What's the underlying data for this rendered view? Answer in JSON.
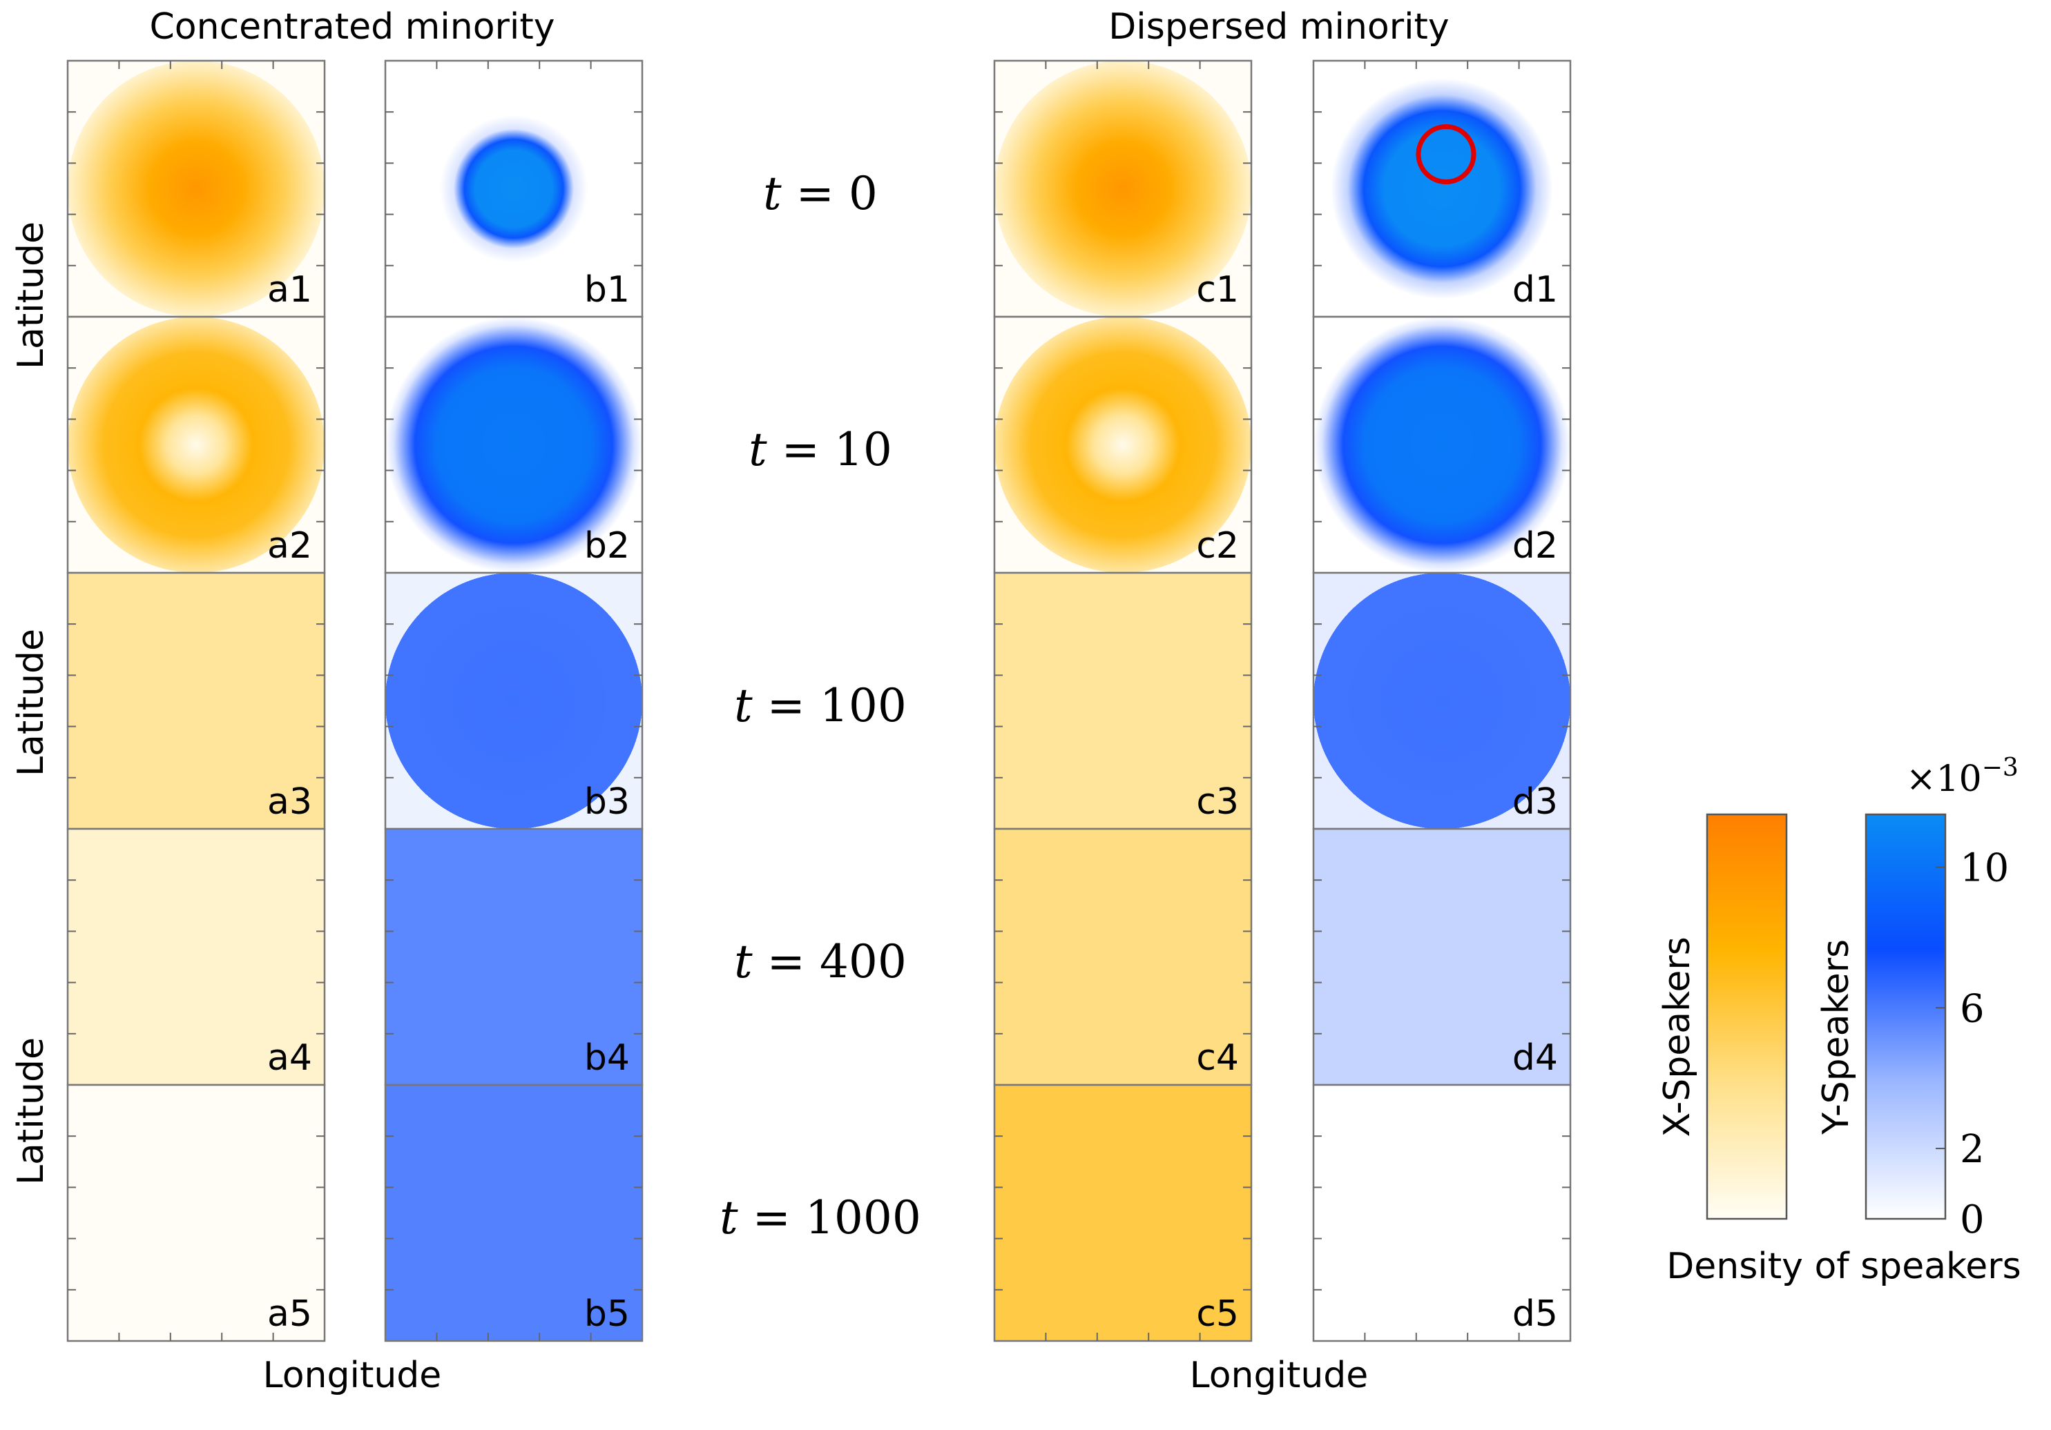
{
  "chart_data": {
    "type": "heatmap",
    "description_free": true,
    "group_titles": [
      "Concentrated minority",
      "Dispersed minority"
    ],
    "xlabel": "Longitude",
    "ylabel": "Latitude",
    "time_labels": [
      "t = 0",
      "t = 10",
      "t = 100",
      "t = 400",
      "t = 1000"
    ],
    "time_values": [
      0,
      10,
      100,
      400,
      1000
    ],
    "columns": [
      "a",
      "b",
      "c",
      "d"
    ],
    "column_species": [
      "X",
      "Y",
      "X",
      "Y"
    ],
    "panels": [
      {
        "id": "a1",
        "label": "a1",
        "species": "X",
        "t": 0,
        "pattern": "blob",
        "peak": 0.85,
        "base": 0.0,
        "radius": 0.4
      },
      {
        "id": "b1",
        "label": "b1",
        "species": "Y",
        "t": 0,
        "pattern": "disk",
        "peak": 1.0,
        "base": 0.0,
        "radius": 0.12
      },
      {
        "id": "c1",
        "label": "c1",
        "species": "X",
        "t": 0,
        "pattern": "blob",
        "peak": 0.85,
        "base": 0.0,
        "radius": 0.4
      },
      {
        "id": "d1",
        "label": "d1",
        "species": "Y",
        "t": 0,
        "pattern": "ringdisk",
        "peak": 1.0,
        "base": 0.0,
        "radius": 0.16,
        "marker": "red-ring"
      },
      {
        "id": "a2",
        "label": "a2",
        "species": "X",
        "t": 10,
        "pattern": "annulus",
        "peak": 0.65,
        "base": 0.0,
        "radius": 0.4
      },
      {
        "id": "b2",
        "label": "b2",
        "species": "Y",
        "t": 10,
        "pattern": "disk",
        "peak": 0.9,
        "base": 0.0,
        "radius": 0.24
      },
      {
        "id": "c2",
        "label": "c2",
        "species": "X",
        "t": 10,
        "pattern": "annulus",
        "peak": 0.65,
        "base": 0.0,
        "radius": 0.4
      },
      {
        "id": "d2",
        "label": "d2",
        "species": "Y",
        "t": 10,
        "pattern": "disk",
        "peak": 0.9,
        "base": 0.0,
        "radius": 0.24
      },
      {
        "id": "a3",
        "label": "a3",
        "species": "X",
        "t": 100,
        "pattern": "uniform",
        "peak": 0.28,
        "base": 0.28,
        "radius": 0.4
      },
      {
        "id": "b3",
        "label": "b3",
        "species": "Y",
        "t": 100,
        "pattern": "disk",
        "peak": 0.55,
        "base": 0.1,
        "radius": 0.4
      },
      {
        "id": "c3",
        "label": "c3",
        "species": "X",
        "t": 100,
        "pattern": "uniform",
        "peak": 0.28,
        "base": 0.28,
        "radius": 0.4
      },
      {
        "id": "d3",
        "label": "d3",
        "species": "Y",
        "t": 100,
        "pattern": "disk",
        "peak": 0.55,
        "base": 0.15,
        "radius": 0.4
      },
      {
        "id": "a4",
        "label": "a4",
        "species": "X",
        "t": 400,
        "pattern": "uniform",
        "peak": 0.12,
        "base": 0.12,
        "radius": 0.4
      },
      {
        "id": "b4",
        "label": "b4",
        "species": "Y",
        "t": 400,
        "pattern": "uniform",
        "peak": 0.48,
        "base": 0.48,
        "radius": 0.4
      },
      {
        "id": "c4",
        "label": "c4",
        "species": "X",
        "t": 400,
        "pattern": "uniform",
        "peak": 0.35,
        "base": 0.35,
        "radius": 0.4
      },
      {
        "id": "d4",
        "label": "d4",
        "species": "Y",
        "t": 400,
        "pattern": "uniform",
        "peak": 0.2,
        "base": 0.2,
        "radius": 0.4
      },
      {
        "id": "a5",
        "label": "a5",
        "species": "X",
        "t": 1000,
        "pattern": "uniform",
        "peak": 0.0,
        "base": 0.0,
        "radius": 0.4
      },
      {
        "id": "b5",
        "label": "b5",
        "species": "Y",
        "t": 1000,
        "pattern": "uniform",
        "peak": 0.5,
        "base": 0.5,
        "radius": 0.4
      },
      {
        "id": "c5",
        "label": "c5",
        "species": "X",
        "t": 1000,
        "pattern": "uniform",
        "peak": 0.5,
        "base": 0.5,
        "radius": 0.4
      },
      {
        "id": "d5",
        "label": "d5",
        "species": "Y",
        "t": 1000,
        "pattern": "uniform",
        "peak": 0.0,
        "base": 0.0,
        "radius": 0.4
      }
    ],
    "colorbars": [
      {
        "name": "X-Speakers",
        "stops": [
          "#fffdf5",
          "#ffe08a",
          "#ffb400",
          "#ff7f00"
        ]
      },
      {
        "name": "Y-Speakers",
        "ticks": [
          "0",
          "2",
          "6",
          "10"
        ],
        "tick_values": [
          0,
          2,
          6,
          10
        ],
        "range": [
          0,
          11.5
        ],
        "multiplier": "×10",
        "multiplier_exponent": "−3",
        "stops": [
          "#ffffff",
          "#9db8ff",
          "#0a4cff",
          "#0a8cf5"
        ]
      }
    ],
    "colorbar_label": "Density of speakers"
  },
  "colors": {
    "x_low": "#fffaf0",
    "x_mid": "#ffb400",
    "x_high": "#ff8a00",
    "y_low": "#ffffff",
    "y_mid": "#0a4cff",
    "y_high": "#0a8cf5",
    "marker": "#e00000",
    "frame": "#777777"
  }
}
